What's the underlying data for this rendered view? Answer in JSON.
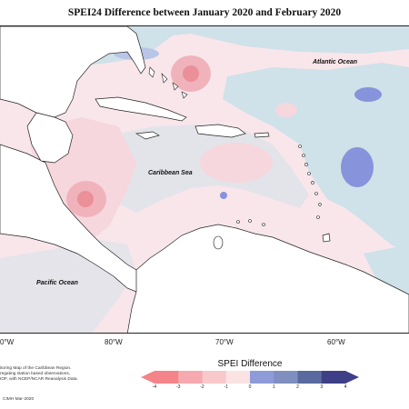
{
  "title": "SPEI24 Difference between January 2020 and February 2020",
  "ocean_labels": {
    "atlantic": "Atlantic Ocean",
    "caribbean": "Caribbean Sea",
    "pacific": "Pacific Ocean"
  },
  "longitude_labels": [
    "0°W",
    "80°W",
    "70°W",
    "60°W"
  ],
  "legend": {
    "title": "SPEI Difference",
    "ticks": [
      "-4",
      "-3",
      "-2",
      "-1",
      "0",
      "1",
      "2",
      "3",
      "4"
    ],
    "colors": [
      "#f4838a",
      "#f6a9ae",
      "#f8c8cb",
      "#fbe3e4",
      "#d8e8ee",
      "#8d9bd9",
      "#7f8fbf",
      "#5a6a9e",
      "#3e3f87"
    ]
  },
  "credits": {
    "lines": [
      "itoring Map of the Caribbean Region.",
      "regating station based observations,",
      "IOF, with NCEP/NCAR Reanalysis Data."
    ],
    "date": "CIMH Mar-2020"
  },
  "colors": {
    "ocean_background": "#f9e6ea",
    "light_blue": "#cfe1e9",
    "medium_blue": "#8793da",
    "light_pink": "#f6d7dd",
    "medium_pink": "#f0b3bb",
    "dark_pink": "#eb9098"
  }
}
